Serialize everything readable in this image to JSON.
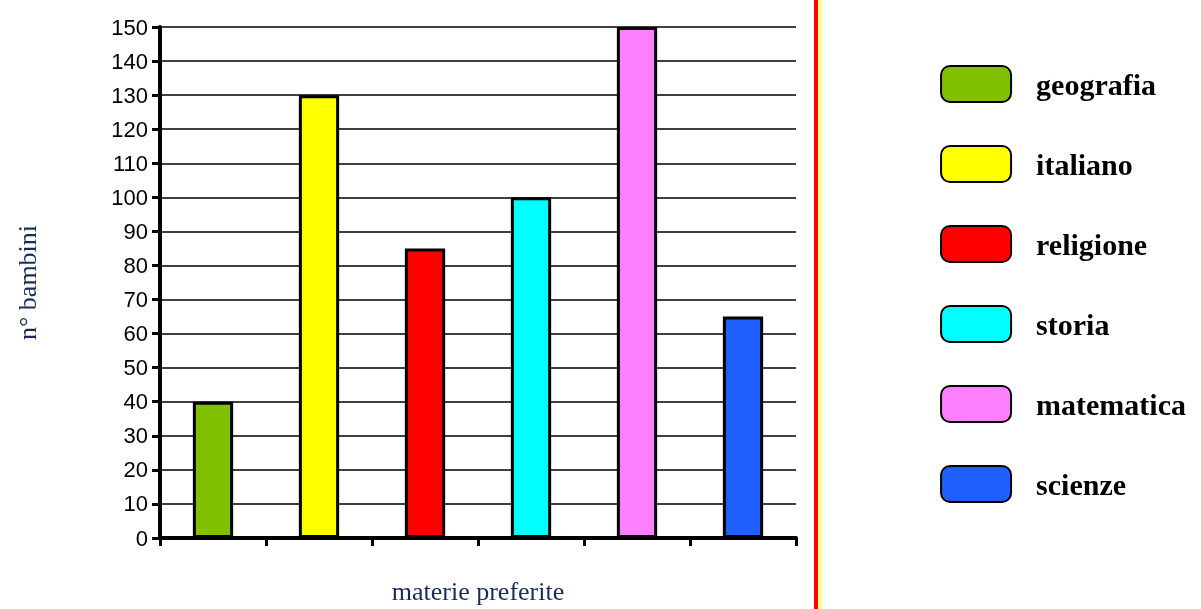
{
  "chart_data": {
    "type": "bar",
    "xlabel": "materie preferite",
    "ylabel": "n° bambini",
    "categories": [
      null,
      null,
      null,
      null,
      null,
      null
    ],
    "series": [
      {
        "name": "geografia",
        "color": "#80c000",
        "values": [
          40,
          null,
          null,
          null,
          null,
          null
        ]
      },
      {
        "name": "italiano",
        "color": "#ffff00",
        "values": [
          null,
          130,
          null,
          null,
          null,
          null
        ]
      },
      {
        "name": "religione",
        "color": "#ff0000",
        "values": [
          null,
          null,
          85,
          null,
          null,
          null
        ]
      },
      {
        "name": "storia",
        "color": "#00ffff",
        "values": [
          null,
          null,
          null,
          100,
          null,
          null
        ]
      },
      {
        "name": "matematica",
        "color": "#ff80ff",
        "values": [
          null,
          null,
          null,
          null,
          150,
          null
        ]
      },
      {
        "name": "scienze",
        "color": "#2060ff",
        "values": [
          null,
          null,
          null,
          null,
          null,
          65
        ]
      }
    ],
    "ylim": [
      0,
      150
    ],
    "yticks": [
      0,
      10,
      20,
      30,
      40,
      50,
      60,
      70,
      80,
      90,
      100,
      110,
      120,
      130,
      140,
      150
    ],
    "grid": "y",
    "legend": "right"
  }
}
